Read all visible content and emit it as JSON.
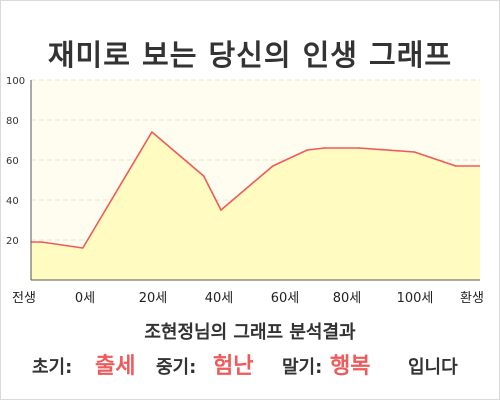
{
  "title": "재미로 보는 당신의 인생 그래프",
  "subtitle": "조현정님의 그래프 분석결과",
  "summary": {
    "early_label": "초기:",
    "early_value": "출세",
    "mid_label": "중기:",
    "mid_value": "험난",
    "late_label": "말기:",
    "late_value": "행복",
    "ending": "입니다"
  },
  "colors": {
    "line": "#ef5a5a",
    "fill": "#fffab8",
    "plot_bg": "#fffdf0",
    "grid": "#e9e4cc",
    "highlight": "#ef5a5a"
  },
  "chart_data": {
    "type": "area",
    "x_tick_labels": [
      "전생",
      "0세",
      "20세",
      "40세",
      "60세",
      "80세",
      "100세",
      "환생"
    ],
    "x": [
      -12,
      0,
      20,
      35,
      40,
      55,
      65,
      70,
      80,
      96,
      108
    ],
    "y": [
      19,
      16,
      74,
      52,
      35,
      57,
      65,
      66,
      66,
      64,
      57
    ],
    "xlim": [
      -15,
      115
    ],
    "ylim": [
      0,
      100
    ],
    "y_ticks": [
      20,
      40,
      60,
      80,
      100
    ],
    "grid": true,
    "legend": "none",
    "title": "재미로 보는 당신의 인생 그래프",
    "xlabel": "",
    "ylabel": ""
  }
}
